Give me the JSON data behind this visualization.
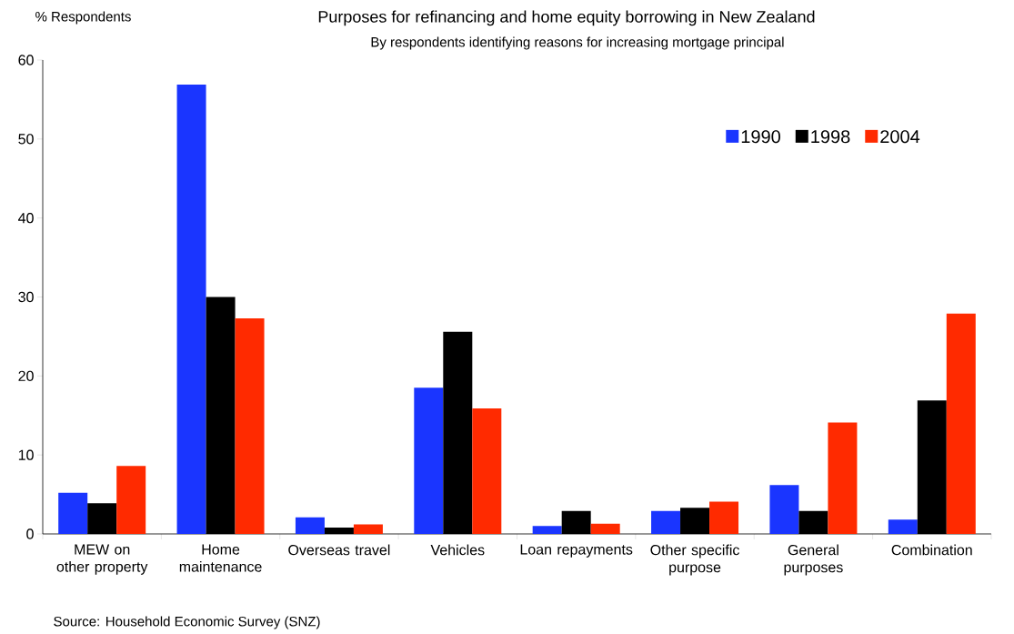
{
  "chart_data": {
    "type": "bar",
    "title": "Purposes for refinancing and home equity borrowing in New Zealand",
    "subtitle": "By respondents identifying reasons for increasing mortgage principal",
    "ylabel": "% Respondents",
    "categories": [
      "MEW on other property",
      "Home maintenance",
      "Overseas travel",
      "Vehicles",
      "Loan repayments",
      "Other specific purpose",
      "General purposes",
      "Combination"
    ],
    "series": [
      {
        "name": "1990",
        "color": "#1a35ff",
        "values": [
          5.2,
          56.9,
          2.1,
          18.5,
          1.0,
          2.9,
          6.2,
          1.8
        ]
      },
      {
        "name": "1998",
        "color": "#000000",
        "values": [
          3.9,
          30.0,
          0.8,
          25.6,
          2.9,
          3.3,
          2.9,
          16.9
        ]
      },
      {
        "name": "2004",
        "color": "#ff2a00",
        "values": [
          8.6,
          27.3,
          1.2,
          15.9,
          1.3,
          4.1,
          14.1,
          27.9
        ]
      }
    ],
    "ylim": [
      0,
      60
    ],
    "yticks": [
      0,
      10,
      20,
      30,
      40,
      50,
      60
    ],
    "legend": "top right",
    "annotations": [
      "Source: Household Economic Survey (SNZ)"
    ]
  }
}
